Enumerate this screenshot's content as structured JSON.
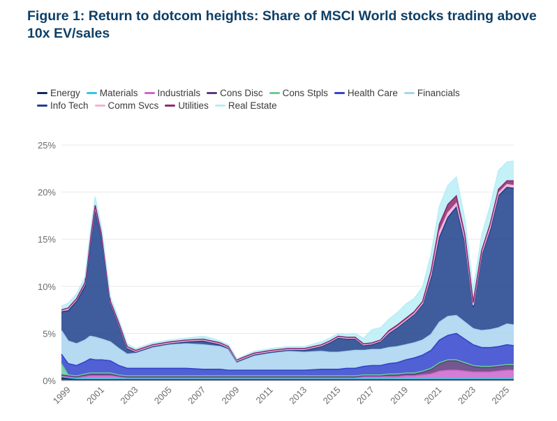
{
  "header": {
    "title": "Figure 1: Return to dotcom heights: Share of MSCI World stocks trading above 10x EV/sales"
  },
  "chart_data": {
    "type": "area",
    "stacked": true,
    "title": "Figure 1: Return to dotcom heights: Share of MSCI World stocks trading above 10x EV/sales",
    "xlabel": "",
    "ylabel": "",
    "xlim": [
      1998.6,
      2025.4
    ],
    "ylim": [
      0,
      25
    ],
    "legend_position": "top-left",
    "yticks": [
      0,
      5,
      10,
      15,
      20,
      25
    ],
    "ytick_labels": [
      "0%",
      "5%",
      "10%",
      "15%",
      "20%",
      "25%"
    ],
    "xticks": [
      1999,
      2001,
      2003,
      2005,
      2007,
      2009,
      2011,
      2013,
      2015,
      2017,
      2019,
      2021,
      2023,
      2025
    ],
    "xtick_labels": [
      "1999",
      "2001",
      "2003",
      "2005",
      "2007",
      "2009",
      "2011",
      "2013",
      "2015",
      "2017",
      "2019",
      "2021",
      "2023",
      "2025"
    ],
    "x": [
      1998.6,
      1999,
      1999.5,
      2000,
      2000.3,
      2000.6,
      2001,
      2001.5,
      2002,
      2002.5,
      2003,
      2004,
      2005,
      2006,
      2007,
      2007.5,
      2008,
      2008.5,
      2009,
      2010,
      2011,
      2012,
      2013,
      2014,
      2014.5,
      2015,
      2015.5,
      2016,
      2016.5,
      2017,
      2017.5,
      2018,
      2018.5,
      2019,
      2019.5,
      2020,
      2020.5,
      2021,
      2021.5,
      2022,
      2022.5,
      2023,
      2023.5,
      2024,
      2024.5,
      2025,
      2025.4
    ],
    "series": [
      {
        "name": "Energy",
        "color": "#0b2c5c",
        "values": [
          0.3,
          0.2,
          0.1,
          0.1,
          0.1,
          0.1,
          0.1,
          0.1,
          0.1,
          0.1,
          0.1,
          0.1,
          0.1,
          0.1,
          0.1,
          0.1,
          0.1,
          0.1,
          0.1,
          0.1,
          0.1,
          0.1,
          0.1,
          0.1,
          0.1,
          0.1,
          0.1,
          0.1,
          0.1,
          0.1,
          0.1,
          0.1,
          0.1,
          0.1,
          0.1,
          0.1,
          0.1,
          0.1,
          0.1,
          0.1,
          0.1,
          0.1,
          0.1,
          0.1,
          0.1,
          0.1,
          0.1
        ]
      },
      {
        "name": "Materials",
        "color": "#2fc7dc",
        "values": [
          0.1,
          0.1,
          0.1,
          0.1,
          0.1,
          0.1,
          0.1,
          0.1,
          0.1,
          0.1,
          0.1,
          0.1,
          0.1,
          0.1,
          0.1,
          0.1,
          0.1,
          0.1,
          0.1,
          0.1,
          0.1,
          0.1,
          0.1,
          0.1,
          0.1,
          0.1,
          0.1,
          0.1,
          0.1,
          0.1,
          0.1,
          0.1,
          0.1,
          0.1,
          0.1,
          0.1,
          0.1,
          0.1,
          0.1,
          0.1,
          0.1,
          0.1,
          0.1,
          0.1,
          0.1,
          0.1,
          0.1
        ]
      },
      {
        "name": "Industrials",
        "color": "#cc66cc",
        "values": [
          0.1,
          0.1,
          0.1,
          0.2,
          0.3,
          0.3,
          0.3,
          0.3,
          0.2,
          0.1,
          0.1,
          0.1,
          0.1,
          0.1,
          0.1,
          0.1,
          0.1,
          0.1,
          0.1,
          0.1,
          0.1,
          0.1,
          0.1,
          0.1,
          0.1,
          0.1,
          0.1,
          0.1,
          0.2,
          0.2,
          0.2,
          0.2,
          0.2,
          0.3,
          0.3,
          0.4,
          0.5,
          0.8,
          0.9,
          0.9,
          0.8,
          0.7,
          0.7,
          0.7,
          0.8,
          0.9,
          0.9
        ]
      },
      {
        "name": "Cons Disc",
        "color": "#5a3a7a",
        "values": [
          0.1,
          0.1,
          0.1,
          0.2,
          0.2,
          0.2,
          0.2,
          0.2,
          0.1,
          0.1,
          0.1,
          0.1,
          0.1,
          0.1,
          0.1,
          0.1,
          0.1,
          0.1,
          0.1,
          0.1,
          0.1,
          0.1,
          0.1,
          0.1,
          0.1,
          0.1,
          0.1,
          0.1,
          0.1,
          0.1,
          0.1,
          0.2,
          0.2,
          0.2,
          0.2,
          0.3,
          0.5,
          0.8,
          1.0,
          1.0,
          0.8,
          0.6,
          0.5,
          0.5,
          0.5,
          0.5,
          0.5
        ]
      },
      {
        "name": "Cons Stpls",
        "color": "#66cc99",
        "values": [
          1.2,
          0.1,
          0.1,
          0.1,
          0.1,
          0.1,
          0.1,
          0.1,
          0.1,
          0.1,
          0.1,
          0.1,
          0.1,
          0.1,
          0.1,
          0.1,
          0.1,
          0.1,
          0.1,
          0.1,
          0.1,
          0.1,
          0.1,
          0.1,
          0.1,
          0.1,
          0.1,
          0.1,
          0.1,
          0.1,
          0.1,
          0.1,
          0.1,
          0.1,
          0.1,
          0.1,
          0.1,
          0.1,
          0.1,
          0.1,
          0.1,
          0.1,
          0.1,
          0.1,
          0.1,
          0.1,
          0.1
        ]
      },
      {
        "name": "Health Care",
        "color": "#3344cc",
        "values": [
          1.0,
          1.2,
          1.1,
          1.3,
          1.5,
          1.4,
          1.4,
          1.3,
          1.0,
          0.8,
          0.8,
          0.8,
          0.8,
          0.8,
          0.7,
          0.7,
          0.7,
          0.6,
          0.6,
          0.6,
          0.6,
          0.6,
          0.6,
          0.7,
          0.7,
          0.7,
          0.8,
          0.8,
          0.9,
          1.0,
          1.0,
          1.1,
          1.2,
          1.4,
          1.6,
          1.7,
          1.9,
          2.4,
          2.6,
          2.8,
          2.5,
          2.2,
          2.0,
          2.0,
          2.0,
          2.1,
          2.0
        ]
      },
      {
        "name": "Financials",
        "color": "#a8d4ef",
        "values": [
          2.5,
          2.4,
          2.3,
          2.3,
          2.4,
          2.4,
          2.2,
          2.0,
          1.8,
          1.5,
          1.6,
          2.2,
          2.5,
          2.6,
          2.6,
          2.5,
          2.4,
          2.2,
          0.8,
          1.5,
          1.8,
          2.0,
          1.9,
          1.9,
          1.8,
          1.8,
          1.8,
          1.9,
          1.7,
          1.7,
          1.7,
          1.7,
          1.7,
          1.6,
          1.6,
          1.6,
          1.7,
          1.9,
          2.0,
          1.9,
          1.8,
          1.7,
          1.8,
          1.9,
          2.0,
          2.2,
          2.2
        ]
      },
      {
        "name": "Info Tech",
        "color": "#1d3f8c",
        "values": [
          2.0,
          3.2,
          4.5,
          5.7,
          9.5,
          13.5,
          10.5,
          4.0,
          2.5,
          0.6,
          0.1,
          0.1,
          0.1,
          0.2,
          0.4,
          0.3,
          0.2,
          0.1,
          0.1,
          0.1,
          0.1,
          0.1,
          0.2,
          0.5,
          1.0,
          1.5,
          1.3,
          1.2,
          0.5,
          0.5,
          0.8,
          1.5,
          2.0,
          2.5,
          3.0,
          3.8,
          6.0,
          9.0,
          10.5,
          11.5,
          8.5,
          2.3,
          8.0,
          10.5,
          14.0,
          14.5,
          14.5
        ]
      },
      {
        "name": "Comm Svcs",
        "color": "#f2b2d6",
        "values": [
          0.1,
          0.2,
          0.2,
          0.3,
          0.4,
          0.3,
          0.3,
          0.2,
          0.1,
          0.1,
          0.1,
          0.1,
          0.1,
          0.1,
          0.1,
          0.1,
          0.1,
          0.1,
          0.1,
          0.1,
          0.1,
          0.1,
          0.1,
          0.1,
          0.1,
          0.1,
          0.1,
          0.1,
          0.1,
          0.1,
          0.1,
          0.1,
          0.1,
          0.1,
          0.1,
          0.1,
          0.3,
          0.6,
          0.5,
          0.4,
          0.3,
          0.2,
          0.2,
          0.3,
          0.3,
          0.3,
          0.3
        ]
      },
      {
        "name": "Utilities",
        "color": "#8c2a6e",
        "values": [
          0.1,
          0.1,
          0.1,
          0.1,
          0.2,
          0.2,
          0.1,
          0.1,
          0.1,
          0.1,
          0.1,
          0.1,
          0.1,
          0.1,
          0.1,
          0.1,
          0.1,
          0.1,
          0.1,
          0.1,
          0.1,
          0.1,
          0.1,
          0.1,
          0.1,
          0.1,
          0.1,
          0.1,
          0.1,
          0.1,
          0.1,
          0.2,
          0.2,
          0.2,
          0.2,
          0.2,
          0.4,
          0.8,
          0.9,
          0.8,
          0.5,
          0.3,
          0.3,
          0.4,
          0.4,
          0.4,
          0.5
        ]
      },
      {
        "name": "Real Estate",
        "color": "#b8eef6",
        "values": [
          0.4,
          0.5,
          0.5,
          0.6,
          0.8,
          0.9,
          0.7,
          0.5,
          0.4,
          0.3,
          0.2,
          0.2,
          0.2,
          0.2,
          0.3,
          0.3,
          0.2,
          0.2,
          0.1,
          0.2,
          0.2,
          0.2,
          0.2,
          0.3,
          0.3,
          0.3,
          0.3,
          0.4,
          0.6,
          1.4,
          1.3,
          1.2,
          1.3,
          1.5,
          1.4,
          1.5,
          1.8,
          1.9,
          2.0,
          2.0,
          1.7,
          1.4,
          1.6,
          1.9,
          2.0,
          2.0,
          2.1
        ]
      }
    ]
  }
}
